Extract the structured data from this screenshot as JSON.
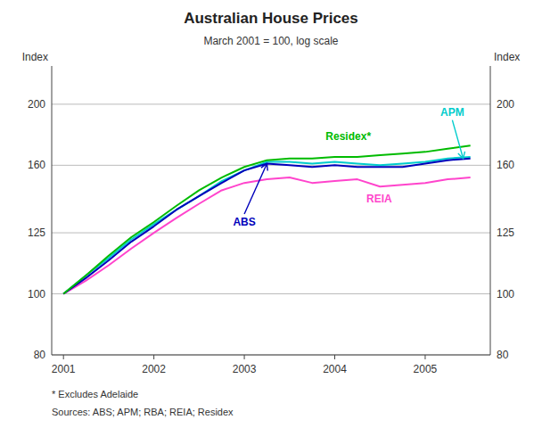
{
  "chart_data": {
    "type": "line",
    "title": "Australian House Prices",
    "subtitle": "March 2001 = 100, log scale",
    "y_label": "Index",
    "y2_label": "Index",
    "footnotes": [
      "*  Excludes Adelaide",
      "Sources: ABS; APM; RBA; REIA; Residex"
    ],
    "x": [
      2001.0,
      2001.25,
      2001.5,
      2001.75,
      2002.0,
      2002.25,
      2002.5,
      2002.75,
      2003.0,
      2003.25,
      2003.5,
      2003.75,
      2004.0,
      2004.25,
      2004.5,
      2004.75,
      2005.0,
      2005.25,
      2005.5
    ],
    "series": [
      {
        "color": "#ff44cc",
        "values": [
          100,
          105,
          111,
          118,
          125,
          132,
          139,
          146,
          150,
          152,
          153,
          150,
          151,
          152,
          148,
          149,
          150,
          152,
          153
        ]
      },
      {
        "color": "#00cccc",
        "values": [
          100,
          107,
          114,
          122,
          129,
          136,
          143,
          151,
          157,
          162,
          162,
          161,
          162,
          161,
          160,
          161,
          162,
          164,
          165
        ]
      },
      {
        "color": "#0000bb",
        "values": [
          100,
          106,
          113,
          121,
          128,
          136,
          143,
          150,
          157,
          161,
          160,
          159,
          160,
          159,
          159,
          159,
          161,
          163,
          164
        ]
      },
      {
        "color": "#00bb00",
        "values": [
          100,
          107,
          115,
          123,
          130,
          138,
          146,
          153,
          159,
          163,
          164,
          164,
          165,
          165,
          166,
          167,
          168,
          170,
          172
        ]
      }
    ],
    "xlim": [
      2000.87,
      2005.72
    ],
    "xticks": [
      2001,
      2002,
      2003,
      2004,
      2005
    ],
    "ylim": [
      80,
      230
    ],
    "yticks": [
      80,
      100,
      125,
      160,
      200
    ],
    "y2lim": [
      80,
      230
    ],
    "y2ticks": [
      80,
      100,
      125,
      160,
      200
    ],
    "log": "y",
    "grid": true,
    "annotations": [
      {
        "text": "ABS",
        "color": "#0000bb",
        "x": 2003.0,
        "y": 133,
        "arrow_x": 2003.25,
        "arrow_y": 161
      },
      {
        "text": "Residex*",
        "color": "#00bb00",
        "x": 2003.9,
        "y": 174
      },
      {
        "text": "APM",
        "color": "#00cccc",
        "x": 2005.3,
        "y": 190,
        "arrow_x": 2005.42,
        "arrow_y": 164
      },
      {
        "text": "REIA",
        "color": "#ff44cc",
        "x": 2004.35,
        "y": 145
      }
    ]
  }
}
